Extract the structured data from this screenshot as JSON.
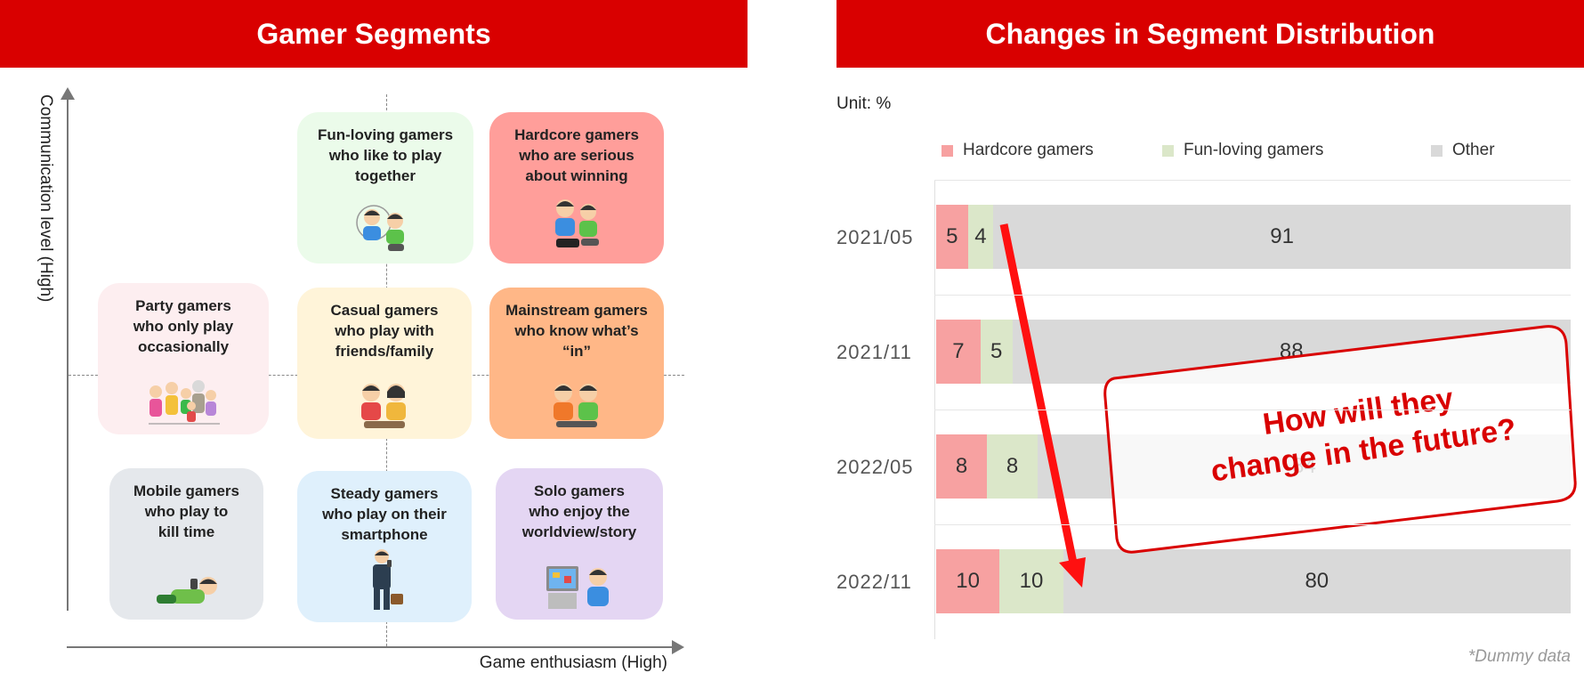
{
  "left_panel": {
    "title": "Gamer Segments",
    "x_axis_label": "Game enthusiasm (High)",
    "y_axis_label": "Communication level (High)",
    "segments": [
      {
        "label": "Fun-loving gamers\nwho like to play\ntogether",
        "color": "#ebfbea",
        "icon": "two-kids-playing-icon"
      },
      {
        "label": "Hardcore gamers\nwho are serious\nabout winning",
        "color": "#ff9e9a",
        "icon": "two-kids-competing-icon"
      },
      {
        "label": "Party gamers\nwho only play\noccasionally",
        "color": "#fdeef0",
        "icon": "family-group-icon"
      },
      {
        "label": "Casual gamers\nwho play with\nfriends/family",
        "color": "#fff4d9",
        "icon": "two-kids-casual-icon"
      },
      {
        "label": "Mainstream gamers\nwho know what’s\n“in”",
        "color": "#ffb787",
        "icon": "two-kids-mainstream-icon"
      },
      {
        "label": "Mobile gamers\nwho play to\nkill time",
        "color": "#e5e8ec",
        "icon": "lying-person-phone-icon"
      },
      {
        "label": "Steady gamers\nwho play on their\nsmartphone",
        "color": "#dff0fc",
        "icon": "businessman-phone-icon"
      },
      {
        "label": "Solo gamers\nwho enjoy the\nworldview/story",
        "color": "#e4d6f3",
        "icon": "kid-with-tv-icon"
      }
    ]
  },
  "right_panel": {
    "title": "Changes in Segment Distribution",
    "unit": "Unit: %",
    "footnote": "*Dummy data",
    "callout": "How will they\nchange in the future?"
  },
  "chart_data": {
    "type": "bar",
    "orientation": "horizontal",
    "stacked": true,
    "categories": [
      "2021/05",
      "2021/11",
      "2022/05",
      "2022/11"
    ],
    "series": [
      {
        "name": "Hardcore gamers",
        "color": "#f7a1a1",
        "values": [
          5,
          7,
          8,
          10
        ]
      },
      {
        "name": "Fun-loving gamers",
        "color": "#dbe7c9",
        "values": [
          4,
          5,
          8,
          10
        ]
      },
      {
        "name": "Other",
        "color": "#d9d9d9",
        "values": [
          91,
          88,
          84,
          80
        ]
      }
    ],
    "xlim": [
      0,
      100
    ],
    "legend_position": "top"
  }
}
